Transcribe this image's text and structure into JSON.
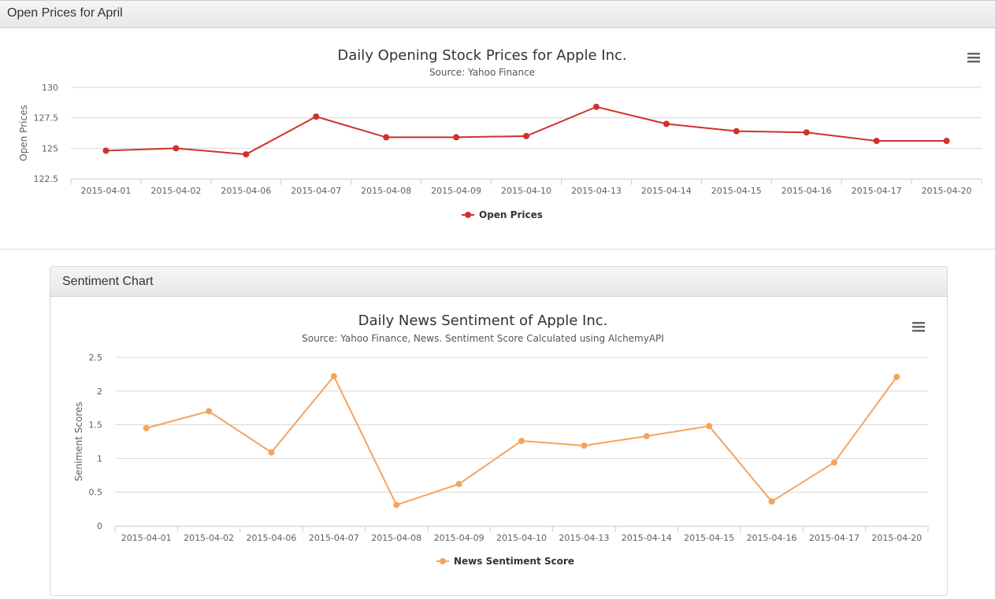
{
  "panels": {
    "top_title": "Open Prices for April",
    "bottom_title": "Sentiment Chart"
  },
  "chart_data": [
    {
      "type": "line",
      "title": "Daily Opening Stock Prices for Apple Inc.",
      "subtitle": "Source: Yahoo Finance",
      "ylabel": "Open Prices",
      "xlabel": "",
      "ylim": [
        122.5,
        130
      ],
      "yticks": [
        122.5,
        125,
        127.5,
        130
      ],
      "yticklabels": [
        "122.5",
        "125",
        "127.5",
        "130"
      ],
      "categories": [
        "2015-04-01",
        "2015-04-02",
        "2015-04-06",
        "2015-04-07",
        "2015-04-08",
        "2015-04-09",
        "2015-04-10",
        "2015-04-13",
        "2015-04-14",
        "2015-04-15",
        "2015-04-16",
        "2015-04-17",
        "2015-04-20"
      ],
      "series": [
        {
          "name": "Open Prices",
          "color": "#d0312b",
          "values": [
            124.8,
            125.0,
            124.5,
            127.6,
            125.9,
            125.9,
            126.0,
            128.4,
            127.0,
            126.4,
            126.3,
            125.6,
            125.6
          ]
        }
      ],
      "grid": true,
      "legend": "bottom"
    },
    {
      "type": "line",
      "title": "Daily News Sentiment of Apple Inc.",
      "subtitle": "Source: Yahoo Finance, News. Sentiment Score Calculated using AlchemyAPI",
      "ylabel": "Seniment Scores",
      "xlabel": "",
      "ylim": [
        0,
        2.5
      ],
      "yticks": [
        0,
        0.5,
        1,
        1.5,
        2,
        2.5
      ],
      "yticklabels": [
        "0",
        "0.5",
        "1",
        "1.5",
        "2",
        "2.5"
      ],
      "categories": [
        "2015-04-01",
        "2015-04-02",
        "2015-04-06",
        "2015-04-07",
        "2015-04-08",
        "2015-04-09",
        "2015-04-10",
        "2015-04-13",
        "2015-04-14",
        "2015-04-15",
        "2015-04-16",
        "2015-04-17",
        "2015-04-20"
      ],
      "series": [
        {
          "name": "News Sentiment Score",
          "color": "#f7a35c",
          "values": [
            1.45,
            1.7,
            1.09,
            2.22,
            0.31,
            0.62,
            1.26,
            1.19,
            1.33,
            1.48,
            0.36,
            0.94,
            2.21
          ]
        }
      ],
      "grid": true,
      "legend": "bottom"
    }
  ],
  "icons": {
    "menu": "hamburger-menu-icon"
  }
}
